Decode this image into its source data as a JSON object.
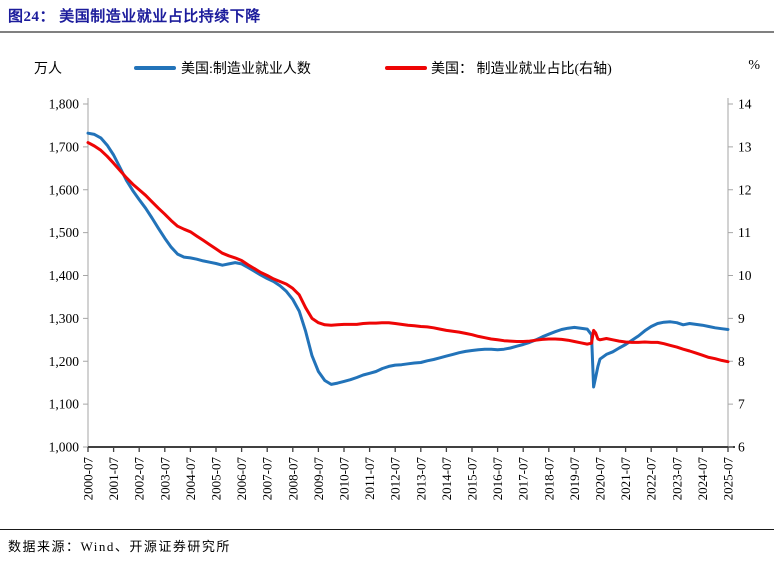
{
  "title": "图24： 美国制造业就业占比持续下降",
  "legend": {
    "left_unit": "万人",
    "right_unit": "%",
    "series1_label": "美国:制造业就业人数",
    "series2_label": "美国： 制造业就业占比(右轴)"
  },
  "footer": {
    "source_label": "数据来源：Wind、开源证券研究所"
  },
  "colors": {
    "title": "#1c1c9c",
    "series1": "#2273b9",
    "series2": "#ee0505",
    "axis_line": "#a6a6a6",
    "bottom_axis": "#404040",
    "title_rule": "#808080",
    "footer_rule": "#1a1a1a"
  },
  "chart_data": {
    "type": "line",
    "title": "美国制造业就业占比持续下降",
    "legend_position": "top",
    "grid": false,
    "x_months_span": 300,
    "x_tick_labels": [
      "2000-07",
      "2001-07",
      "2002-07",
      "2003-07",
      "2004-07",
      "2005-07",
      "2006-07",
      "2007-07",
      "2008-07",
      "2009-07",
      "2010-07",
      "2011-07",
      "2012-07",
      "2013-07",
      "2014-07",
      "2015-07",
      "2016-07",
      "2017-07",
      "2018-07",
      "2019-07",
      "2020-07",
      "2021-07",
      "2022-07",
      "2023-07",
      "2024-07",
      "2025-07"
    ],
    "y_left": {
      "unit": "万人",
      "min": 1000,
      "max": 1800,
      "tick_values": [
        1800,
        1700,
        1600,
        1500,
        1400,
        1300,
        1200,
        1100,
        1000
      ],
      "tick_labels": [
        "1,800",
        "1,700",
        "1,600",
        "1,500",
        "1,400",
        "1,300",
        "1,200",
        "1,100",
        "1,000"
      ]
    },
    "y_right": {
      "unit": "%",
      "min": 6,
      "max": 14,
      "tick_values": [
        14,
        13,
        12,
        11,
        10,
        9,
        8,
        7,
        6
      ],
      "tick_labels": [
        "14",
        "13",
        "12",
        "11",
        "10",
        "9",
        "8",
        "7",
        "6"
      ]
    },
    "series": [
      {
        "name": "美国:制造业就业人数",
        "axis": "left",
        "color": "#2273b9",
        "points": [
          [
            0,
            1732
          ],
          [
            3,
            1729
          ],
          [
            6,
            1721
          ],
          [
            9,
            1704
          ],
          [
            12,
            1681
          ],
          [
            15,
            1652
          ],
          [
            18,
            1622
          ],
          [
            21,
            1598
          ],
          [
            24,
            1577
          ],
          [
            27,
            1557
          ],
          [
            30,
            1534
          ],
          [
            33,
            1510
          ],
          [
            36,
            1487
          ],
          [
            39,
            1466
          ],
          [
            42,
            1450
          ],
          [
            45,
            1443
          ],
          [
            48,
            1441
          ],
          [
            51,
            1438
          ],
          [
            54,
            1434
          ],
          [
            57,
            1431
          ],
          [
            60,
            1428
          ],
          [
            63,
            1424
          ],
          [
            66,
            1427
          ],
          [
            69,
            1430
          ],
          [
            72,
            1427
          ],
          [
            75,
            1419
          ],
          [
            78,
            1410
          ],
          [
            81,
            1401
          ],
          [
            84,
            1393
          ],
          [
            87,
            1386
          ],
          [
            90,
            1376
          ],
          [
            93,
            1363
          ],
          [
            96,
            1344
          ],
          [
            99,
            1317
          ],
          [
            102,
            1270
          ],
          [
            105,
            1213
          ],
          [
            108,
            1176
          ],
          [
            111,
            1155
          ],
          [
            114,
            1146
          ],
          [
            117,
            1149
          ],
          [
            120,
            1153
          ],
          [
            123,
            1157
          ],
          [
            126,
            1162
          ],
          [
            129,
            1168
          ],
          [
            132,
            1172
          ],
          [
            135,
            1176
          ],
          [
            138,
            1183
          ],
          [
            141,
            1188
          ],
          [
            144,
            1191
          ],
          [
            147,
            1192
          ],
          [
            150,
            1194
          ],
          [
            153,
            1196
          ],
          [
            156,
            1197
          ],
          [
            159,
            1201
          ],
          [
            162,
            1204
          ],
          [
            165,
            1208
          ],
          [
            168,
            1212
          ],
          [
            171,
            1216
          ],
          [
            174,
            1220
          ],
          [
            177,
            1223
          ],
          [
            180,
            1225
          ],
          [
            183,
            1227
          ],
          [
            186,
            1228
          ],
          [
            189,
            1228
          ],
          [
            192,
            1227
          ],
          [
            195,
            1228
          ],
          [
            198,
            1231
          ],
          [
            201,
            1235
          ],
          [
            204,
            1239
          ],
          [
            207,
            1244
          ],
          [
            210,
            1250
          ],
          [
            213,
            1257
          ],
          [
            216,
            1263
          ],
          [
            219,
            1269
          ],
          [
            222,
            1274
          ],
          [
            225,
            1277
          ],
          [
            228,
            1279
          ],
          [
            231,
            1277
          ],
          [
            234,
            1275
          ],
          [
            236,
            1262
          ],
          [
            237,
            1140
          ],
          [
            238,
            1163
          ],
          [
            239,
            1188
          ],
          [
            240,
            1205
          ],
          [
            243,
            1216
          ],
          [
            246,
            1222
          ],
          [
            249,
            1231
          ],
          [
            252,
            1239
          ],
          [
            255,
            1249
          ],
          [
            258,
            1259
          ],
          [
            261,
            1271
          ],
          [
            264,
            1281
          ],
          [
            267,
            1288
          ],
          [
            270,
            1291
          ],
          [
            273,
            1292
          ],
          [
            276,
            1290
          ],
          [
            279,
            1285
          ],
          [
            282,
            1288
          ],
          [
            285,
            1286
          ],
          [
            288,
            1284
          ],
          [
            291,
            1281
          ],
          [
            294,
            1278
          ],
          [
            297,
            1276
          ],
          [
            300,
            1274
          ]
        ]
      },
      {
        "name": "美国： 制造业就业占比(右轴)",
        "axis": "right",
        "color": "#ee0505",
        "points": [
          [
            0,
            13.1
          ],
          [
            3,
            13.02
          ],
          [
            6,
            12.92
          ],
          [
            9,
            12.78
          ],
          [
            12,
            12.62
          ],
          [
            15,
            12.45
          ],
          [
            18,
            12.28
          ],
          [
            21,
            12.13
          ],
          [
            24,
            12.0
          ],
          [
            27,
            11.87
          ],
          [
            30,
            11.72
          ],
          [
            33,
            11.57
          ],
          [
            36,
            11.43
          ],
          [
            39,
            11.28
          ],
          [
            42,
            11.15
          ],
          [
            45,
            11.08
          ],
          [
            48,
            11.02
          ],
          [
            51,
            10.92
          ],
          [
            54,
            10.82
          ],
          [
            57,
            10.72
          ],
          [
            60,
            10.62
          ],
          [
            63,
            10.52
          ],
          [
            66,
            10.46
          ],
          [
            69,
            10.41
          ],
          [
            72,
            10.35
          ],
          [
            75,
            10.25
          ],
          [
            78,
            10.16
          ],
          [
            81,
            10.07
          ],
          [
            84,
            10.0
          ],
          [
            87,
            9.92
          ],
          [
            90,
            9.86
          ],
          [
            93,
            9.8
          ],
          [
            96,
            9.7
          ],
          [
            99,
            9.55
          ],
          [
            102,
            9.25
          ],
          [
            105,
            9.0
          ],
          [
            108,
            8.9
          ],
          [
            111,
            8.85
          ],
          [
            114,
            8.84
          ],
          [
            117,
            8.85
          ],
          [
            120,
            8.86
          ],
          [
            123,
            8.86
          ],
          [
            126,
            8.86
          ],
          [
            129,
            8.88
          ],
          [
            132,
            8.89
          ],
          [
            135,
            8.89
          ],
          [
            138,
            8.9
          ],
          [
            141,
            8.9
          ],
          [
            144,
            8.88
          ],
          [
            147,
            8.86
          ],
          [
            150,
            8.84
          ],
          [
            153,
            8.83
          ],
          [
            156,
            8.81
          ],
          [
            159,
            8.8
          ],
          [
            162,
            8.78
          ],
          [
            165,
            8.75
          ],
          [
            168,
            8.72
          ],
          [
            171,
            8.7
          ],
          [
            174,
            8.68
          ],
          [
            177,
            8.65
          ],
          [
            180,
            8.62
          ],
          [
            183,
            8.58
          ],
          [
            186,
            8.55
          ],
          [
            189,
            8.52
          ],
          [
            192,
            8.5
          ],
          [
            195,
            8.48
          ],
          [
            198,
            8.47
          ],
          [
            201,
            8.46
          ],
          [
            204,
            8.46
          ],
          [
            207,
            8.47
          ],
          [
            210,
            8.49
          ],
          [
            213,
            8.51
          ],
          [
            216,
            8.52
          ],
          [
            219,
            8.52
          ],
          [
            222,
            8.51
          ],
          [
            225,
            8.49
          ],
          [
            228,
            8.46
          ],
          [
            231,
            8.43
          ],
          [
            234,
            8.4
          ],
          [
            236,
            8.42
          ],
          [
            237,
            8.72
          ],
          [
            238,
            8.66
          ],
          [
            239,
            8.52
          ],
          [
            240,
            8.5
          ],
          [
            243,
            8.53
          ],
          [
            246,
            8.5
          ],
          [
            249,
            8.47
          ],
          [
            252,
            8.45
          ],
          [
            255,
            8.44
          ],
          [
            258,
            8.44
          ],
          [
            261,
            8.45
          ],
          [
            264,
            8.44
          ],
          [
            267,
            8.44
          ],
          [
            270,
            8.41
          ],
          [
            273,
            8.37
          ],
          [
            276,
            8.33
          ],
          [
            279,
            8.28
          ],
          [
            282,
            8.24
          ],
          [
            285,
            8.19
          ],
          [
            288,
            8.14
          ],
          [
            291,
            8.09
          ],
          [
            294,
            8.06
          ],
          [
            297,
            8.02
          ],
          [
            300,
            7.99
          ]
        ]
      }
    ]
  }
}
